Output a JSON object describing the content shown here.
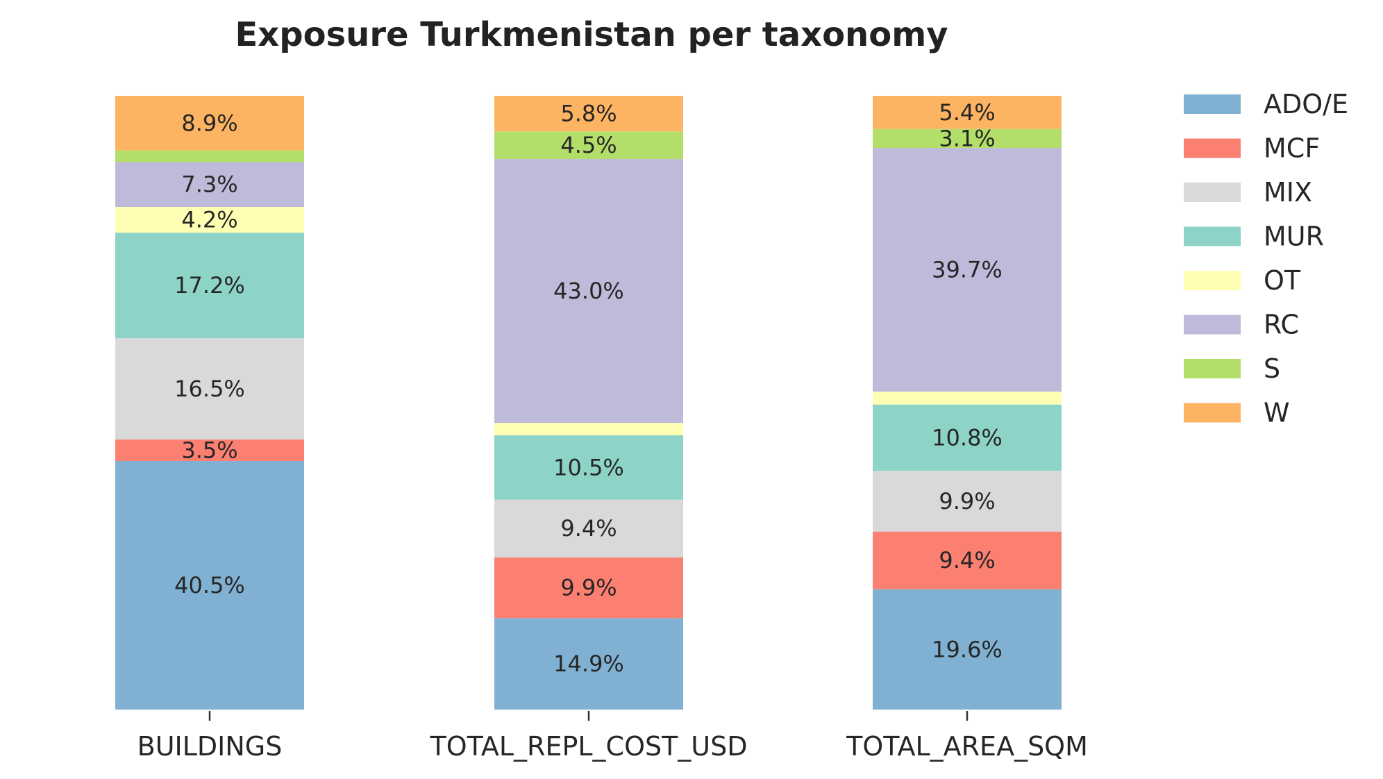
{
  "chart_data": {
    "type": "bar",
    "stacked": true,
    "normalized": true,
    "title": "Exposure Turkmenistan per taxonomy",
    "xlabel": "",
    "ylabel": "",
    "ylim": [
      0,
      100
    ],
    "grid": false,
    "legend_position": "top-right (outside)",
    "categories": [
      "BUILDINGS",
      "TOTAL_REPL_COST_USD",
      "TOTAL_AREA_SQM"
    ],
    "series": [
      {
        "name": "ADO/E",
        "color": "#80b1d3",
        "values": [
          40.5,
          14.9,
          19.6
        ],
        "labels": [
          "40.5%",
          "14.9%",
          "19.6%"
        ]
      },
      {
        "name": "MCF",
        "color": "#fb8072",
        "values": [
          3.5,
          9.9,
          9.4
        ],
        "labels": [
          "3.5%",
          "9.9%",
          "9.4%"
        ]
      },
      {
        "name": "MIX",
        "color": "#d9d9d9",
        "values": [
          16.5,
          9.4,
          9.9
        ],
        "labels": [
          "16.5%",
          "9.4%",
          "9.9%"
        ]
      },
      {
        "name": "MUR",
        "color": "#8dd3c7",
        "values": [
          17.2,
          10.5,
          10.8
        ],
        "labels": [
          "17.2%",
          "10.5%",
          "10.8%"
        ]
      },
      {
        "name": "OT",
        "color": "#ffffb3",
        "values": [
          4.2,
          2.0,
          2.1
        ],
        "labels": [
          "4.2%",
          "",
          ""
        ]
      },
      {
        "name": "RC",
        "color": "#bebada",
        "values": [
          7.3,
          43.0,
          39.7
        ],
        "labels": [
          "7.3%",
          "43.0%",
          "39.7%"
        ]
      },
      {
        "name": "S",
        "color": "#b3de69",
        "values": [
          1.9,
          4.5,
          3.1
        ],
        "labels": [
          "",
          "4.5%",
          "3.1%"
        ]
      },
      {
        "name": "W",
        "color": "#fdb462",
        "values": [
          8.9,
          5.8,
          5.4
        ],
        "labels": [
          "8.9%",
          "5.8%",
          "5.4%"
        ]
      }
    ]
  }
}
